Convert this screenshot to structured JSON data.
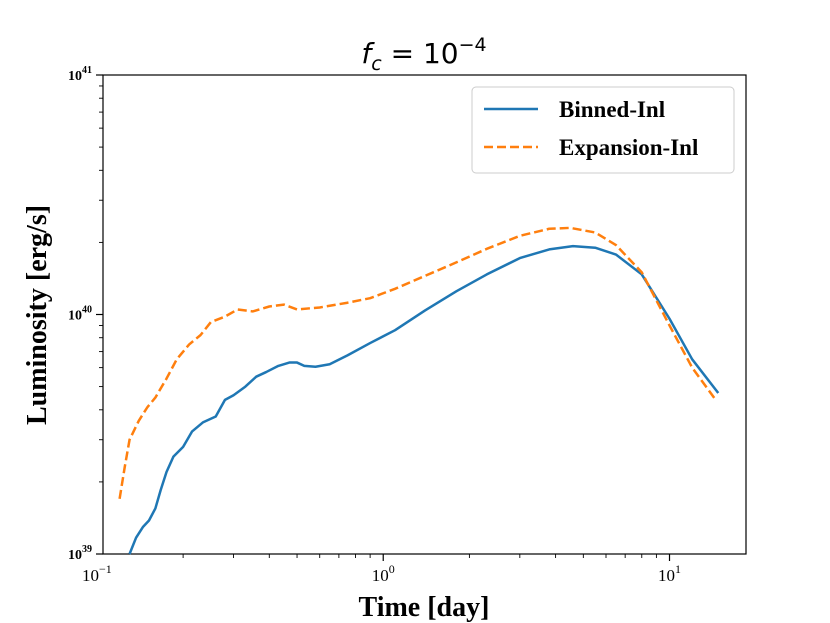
{
  "chart_data": {
    "type": "line",
    "title": "f_c = 10^-4",
    "title_parts": {
      "base": "f",
      "sub": "c",
      "mid": " = 10",
      "sup": "−4"
    },
    "xlabel": "Time [day]",
    "ylabel": "Luminosity [erg/s]",
    "x_scale": "log",
    "y_scale": "log",
    "xlim": [
      0.105,
      18.5
    ],
    "ylim": [
      1e+39,
      1e+41
    ],
    "x_ticks": [
      {
        "value": 0.1,
        "base": "10",
        "exp": "−1"
      },
      {
        "value": 1,
        "base": "10",
        "exp": "0"
      },
      {
        "value": 10,
        "base": "10",
        "exp": "1"
      }
    ],
    "y_ticks": [
      {
        "value": 1e+39,
        "base": "10",
        "exp": "39"
      },
      {
        "value": 1e+40,
        "base": "10",
        "exp": "40"
      },
      {
        "value": 1e+41,
        "base": "10",
        "exp": "41"
      }
    ],
    "grid": false,
    "legend_position": "top-right",
    "series": [
      {
        "name": "Binned-Inl",
        "color": "#1f77b4",
        "dash": "solid",
        "points": [
          [
            0.13,
            1e+39
          ],
          [
            0.137,
            1.17e+39
          ],
          [
            0.145,
            1.3e+39
          ],
          [
            0.152,
            1.38e+39
          ],
          [
            0.16,
            1.55e+39
          ],
          [
            0.167,
            1.85e+39
          ],
          [
            0.175,
            2.2e+39
          ],
          [
            0.185,
            2.55e+39
          ],
          [
            0.2,
            2.8e+39
          ],
          [
            0.215,
            3.25e+39
          ],
          [
            0.235,
            3.55e+39
          ],
          [
            0.26,
            3.75e+39
          ],
          [
            0.28,
            4.4e+39
          ],
          [
            0.3,
            4.6e+39
          ],
          [
            0.33,
            5e+39
          ],
          [
            0.36,
            5.5e+39
          ],
          [
            0.39,
            5.75e+39
          ],
          [
            0.43,
            6.1e+39
          ],
          [
            0.47,
            6.3e+39
          ],
          [
            0.5,
            6.3e+39
          ],
          [
            0.53,
            6.1e+39
          ],
          [
            0.58,
            6.05e+39
          ],
          [
            0.65,
            6.2e+39
          ],
          [
            0.75,
            6.75e+39
          ],
          [
            0.9,
            7.6e+39
          ],
          [
            1.1,
            8.6e+39
          ],
          [
            1.4,
            1.04e+40
          ],
          [
            1.8,
            1.25e+40
          ],
          [
            2.3,
            1.47e+40
          ],
          [
            3.0,
            1.72e+40
          ],
          [
            3.8,
            1.87e+40
          ],
          [
            4.6,
            1.93e+40
          ],
          [
            5.5,
            1.9e+40
          ],
          [
            6.5,
            1.78e+40
          ],
          [
            8.0,
            1.47e+40
          ],
          [
            10.0,
            9.6e+39
          ],
          [
            12.0,
            6.5e+39
          ],
          [
            14.8,
            4.7e+39
          ]
        ]
      },
      {
        "name": "Expansion-Inl",
        "color": "#ff7f0e",
        "dash": "dashed",
        "points": [
          [
            0.12,
            1.7e+39
          ],
          [
            0.125,
            2.3e+39
          ],
          [
            0.13,
            3e+39
          ],
          [
            0.14,
            3.6e+39
          ],
          [
            0.15,
            4.1e+39
          ],
          [
            0.16,
            4.5e+39
          ],
          [
            0.175,
            5.4e+39
          ],
          [
            0.19,
            6.5e+39
          ],
          [
            0.21,
            7.5e+39
          ],
          [
            0.23,
            8.2e+39
          ],
          [
            0.25,
            9.3e+39
          ],
          [
            0.28,
            9.8e+39
          ],
          [
            0.31,
            1.05e+40
          ],
          [
            0.35,
            1.03e+40
          ],
          [
            0.4,
            1.08e+40
          ],
          [
            0.45,
            1.1e+40
          ],
          [
            0.5,
            1.05e+40
          ],
          [
            0.6,
            1.07e+40
          ],
          [
            0.75,
            1.12e+40
          ],
          [
            0.9,
            1.17e+40
          ],
          [
            1.1,
            1.28e+40
          ],
          [
            1.4,
            1.45e+40
          ],
          [
            1.8,
            1.65e+40
          ],
          [
            2.3,
            1.88e+40
          ],
          [
            3.0,
            2.13e+40
          ],
          [
            3.8,
            2.28e+40
          ],
          [
            4.5,
            2.3e+40
          ],
          [
            5.5,
            2.2e+40
          ],
          [
            6.5,
            1.95e+40
          ],
          [
            8.0,
            1.5e+40
          ],
          [
            10.0,
            9e+39
          ],
          [
            12.0,
            6e+39
          ],
          [
            14.5,
            4.4e+39
          ]
        ]
      }
    ]
  }
}
